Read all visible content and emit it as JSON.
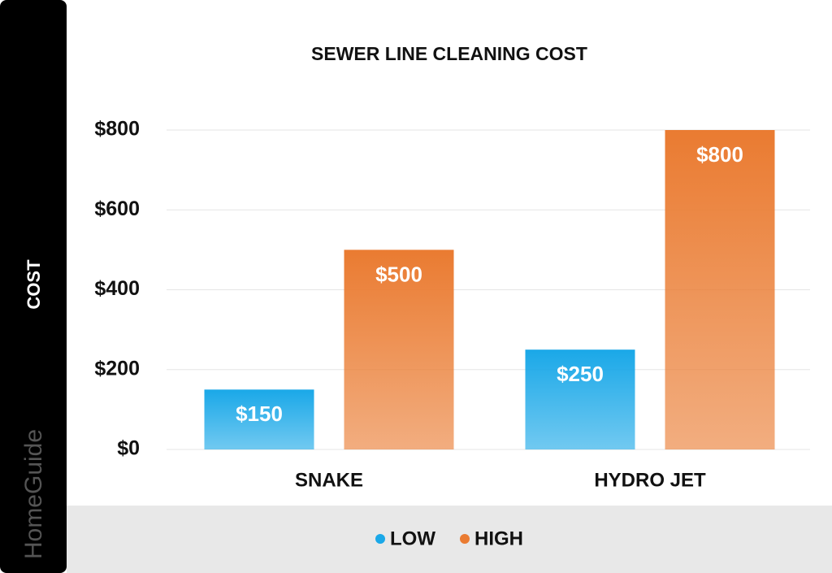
{
  "brand": "HomeGuide",
  "chart_data": {
    "type": "bar",
    "title": "SEWER LINE CLEANING COST",
    "y_label": "COST",
    "categories": [
      "SNAKE",
      "HYDRO JET"
    ],
    "series": [
      {
        "name": "LOW",
        "color": "#1aa8e8",
        "values": [
          150,
          250
        ],
        "value_labels": [
          "$150",
          "$250"
        ]
      },
      {
        "name": "HIGH",
        "color": "#ea7b31",
        "values": [
          500,
          800
        ],
        "value_labels": [
          "$500",
          "$800"
        ]
      }
    ],
    "ylim": [
      0,
      800
    ],
    "yticks": [
      {
        "value": 0,
        "label": "$0"
      },
      {
        "value": 200,
        "label": "$200"
      },
      {
        "value": 400,
        "label": "$400"
      },
      {
        "value": 600,
        "label": "$600"
      },
      {
        "value": 800,
        "label": "$800"
      }
    ],
    "grid": true,
    "legend": "bottom"
  }
}
